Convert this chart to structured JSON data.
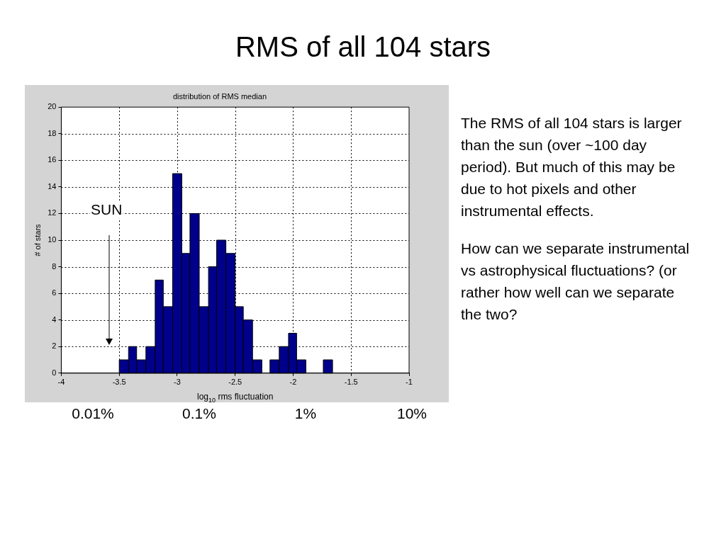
{
  "chart_data": {
    "type": "histogram",
    "title": "RMS of all 104 stars",
    "subtitle": "distribution of RMS median",
    "xlabel": "log$_{10}$ rms fluctuation",
    "ylabel": "# of stars",
    "bins": [
      -3.5,
      -3.42,
      -3.35,
      -3.27,
      -3.19,
      -3.12,
      -3.04,
      -2.96,
      -2.89,
      -2.81,
      -2.73,
      -2.66,
      -2.58,
      -2.5,
      -2.43,
      -2.35,
      -2.27,
      -2.2,
      -2.12,
      -2.04,
      -1.97,
      -1.89,
      -1.74,
      -1.66
    ],
    "values": [
      1,
      2,
      1,
      2,
      7,
      5,
      15,
      9,
      12,
      5,
      8,
      10,
      9,
      5,
      4,
      1,
      0,
      1,
      2,
      3,
      1,
      0,
      1
    ],
    "color": "#00008b",
    "xlim": [
      -4,
      -1
    ],
    "xticks": [
      -4,
      -3.5,
      -3,
      -2.5,
      -2,
      -1.5,
      -1
    ],
    "ylim": [
      0,
      20
    ],
    "yticks": [
      0,
      2,
      4,
      6,
      8,
      10,
      12,
      14,
      16,
      18,
      20
    ],
    "grid": true,
    "legend": false,
    "annotations": [
      "SUN",
      "The RMS of all 104 stars is larger than the sun (over ~100 day period). But much of this may be due to hot pixels and other instrumental effects.",
      "How can we separate instrumental vs astrophysical fluctuations? (or rather how well can we separate the two?",
      "0.01%",
      "0.1%",
      "1%",
      "10%"
    ]
  }
}
